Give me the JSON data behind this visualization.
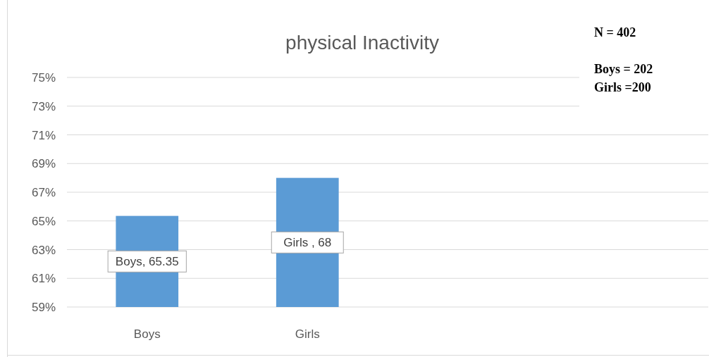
{
  "chart_data": {
    "type": "bar",
    "title": "physical Inactivity",
    "categories": [
      "Boys",
      "Girls",
      null,
      null
    ],
    "values": [
      65.35,
      68,
      null,
      null
    ],
    "value_labels": [
      "Boys, 65.35",
      "Girls , 68",
      null,
      null
    ],
    "color": "#5b9bd5",
    "ylim": [
      59,
      75
    ],
    "yticks": [
      {
        "value": 59,
        "label": "59%"
      },
      {
        "value": 61,
        "label": "61%"
      },
      {
        "value": 63,
        "label": "63%"
      },
      {
        "value": 65,
        "label": "65%"
      },
      {
        "value": 67,
        "label": "67%"
      },
      {
        "value": 69,
        "label": "69%"
      },
      {
        "value": 71,
        "label": "71%"
      },
      {
        "value": 73,
        "label": "73%"
      },
      {
        "value": 75,
        "label": "75%"
      }
    ],
    "grid": "y",
    "annotations": [
      "N = 402",
      "Boys = 202",
      "Girls =200"
    ]
  }
}
